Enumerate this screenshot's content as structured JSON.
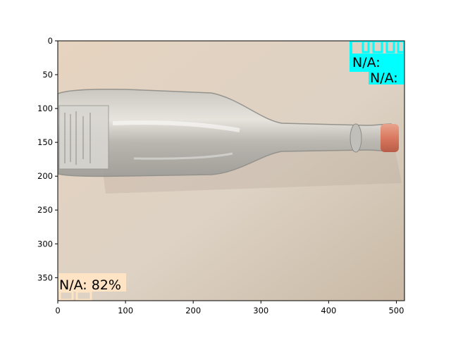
{
  "image": {
    "subject": "glass bottle lying on its side",
    "extent": {
      "width": 512,
      "height": 384
    }
  },
  "axes": {
    "x_ticks": [
      0,
      100,
      200,
      300,
      400,
      500
    ],
    "y_ticks": [
      0,
      50,
      100,
      150,
      200,
      250,
      300,
      350
    ]
  },
  "annotations": {
    "bottom_left_label": "N/A: 82%",
    "top_right_label_1": "N/A: ",
    "top_right_label_2": "N/A:",
    "colors": {
      "cyan_box": "#00ffff",
      "peach_box": "#ffe4c4"
    }
  }
}
